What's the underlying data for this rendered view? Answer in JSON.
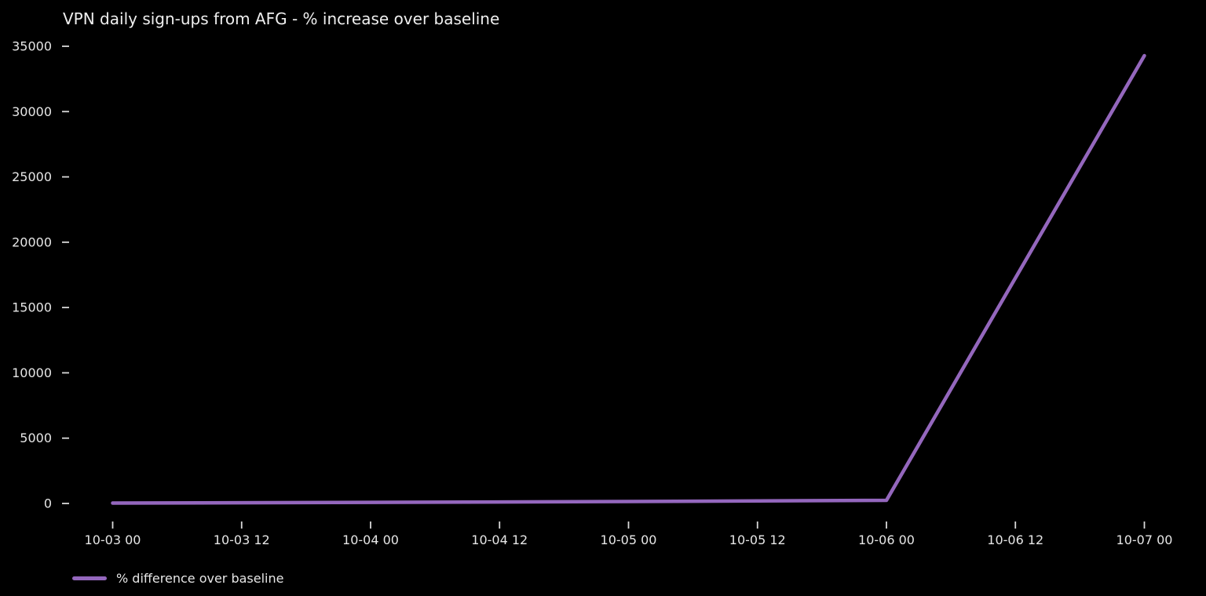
{
  "chart_data": {
    "type": "line",
    "title": "VPN daily sign-ups from AFG - % increase over baseline",
    "xlabel": "",
    "ylabel": "",
    "x_ticks": [
      "10-03 00",
      "10-03 12",
      "10-04 00",
      "10-04 12",
      "10-05 00",
      "10-05 12",
      "10-06 00",
      "10-06 12",
      "10-07 00"
    ],
    "y_ticks": [
      0,
      5000,
      10000,
      15000,
      20000,
      25000,
      30000,
      35000
    ],
    "ylim": [
      0,
      35000
    ],
    "grid": false,
    "legend_position": "lower-left",
    "background_color": "#000000",
    "text_color": "#e6e6e6",
    "series": [
      {
        "name": "% difference over baseline",
        "color": "#9467bd",
        "points": [
          {
            "x": "10-03 00",
            "y": 30
          },
          {
            "x": "10-04 00",
            "y": 80
          },
          {
            "x": "10-05 00",
            "y": 150
          },
          {
            "x": "10-06 00",
            "y": 240
          },
          {
            "x": "10-07 00",
            "y": 34280
          }
        ]
      }
    ]
  },
  "legend": {
    "swatch_icon": "line-swatch-icon",
    "swatch_color": "#9467bd",
    "label": "% difference over baseline"
  }
}
